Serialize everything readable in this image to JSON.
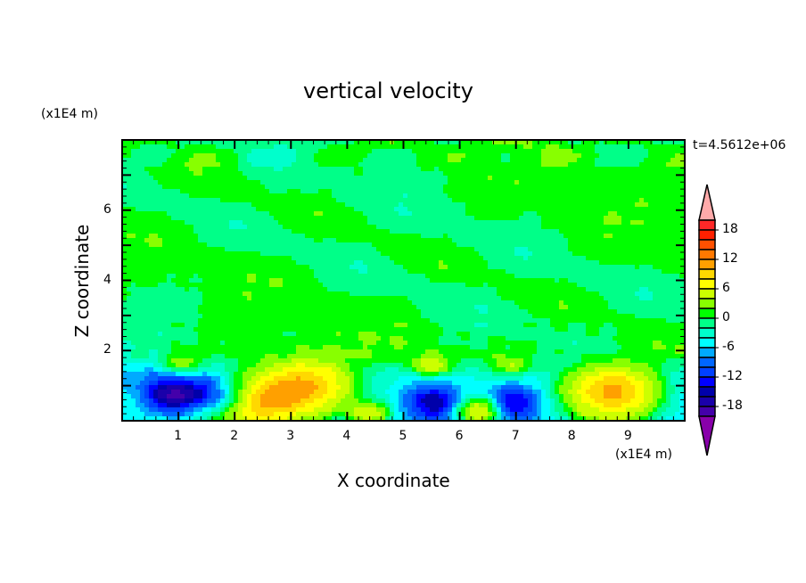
{
  "chart_data": {
    "type": "heatmap",
    "style": "filled contour",
    "title": "vertical velocity",
    "xlabel": "X coordinate",
    "ylabel": "Z coordinate",
    "x_unit": "(x1E4 m)",
    "y_unit": "(x1E4 m)",
    "time_label": "t=4.5612e+06",
    "xlim": [
      0,
      10
    ],
    "ylim": [
      0,
      8
    ],
    "x_ticks": [
      "1",
      "2",
      "3",
      "4",
      "5",
      "6",
      "7",
      "8",
      "9"
    ],
    "y_ticks": [
      "2",
      "4",
      "6"
    ],
    "colorbar": {
      "levels_step": 2,
      "range": [
        -20,
        20
      ],
      "tick_labels": [
        "18",
        "12",
        "6",
        "0",
        "-6",
        "-12",
        "-18"
      ],
      "colors_high_to_low": [
        "#ff2828",
        "#ff2000",
        "#ff5000",
        "#ff7800",
        "#ffa000",
        "#ffd800",
        "#ffff00",
        "#ccff00",
        "#88ff00",
        "#00ff00",
        "#00ff88",
        "#00ffcc",
        "#00ffff",
        "#00aaff",
        "#0066ff",
        "#0040ff",
        "#0000ff",
        "#0000aa",
        "#1a00aa",
        "#4400aa"
      ],
      "over_color": "#ffaaaa",
      "under_color": "#8800aa"
    },
    "features": [
      {
        "x": 0.85,
        "z": 0.7,
        "peak": -13
      },
      {
        "x": 1.6,
        "z": 0.75,
        "peak": -11
      },
      {
        "x": 2.4,
        "z": 0.45,
        "peak": 10
      },
      {
        "x": 3.2,
        "z": 1.0,
        "peak": 9
      },
      {
        "x": 4.4,
        "z": 0.2,
        "peak": 5
      },
      {
        "x": 5.55,
        "z": 0.5,
        "peak": -12
      },
      {
        "x": 6.35,
        "z": 0.3,
        "peak": 7
      },
      {
        "x": 6.95,
        "z": 0.5,
        "peak": -11
      },
      {
        "x": 8.7,
        "z": 0.9,
        "peak": 11
      },
      {
        "x": 1.05,
        "z": 1.65,
        "peak": 4
      },
      {
        "x": 5.5,
        "z": 1.6,
        "peak": 5
      },
      {
        "x": 6.9,
        "z": 1.6,
        "peak": 3
      }
    ]
  }
}
